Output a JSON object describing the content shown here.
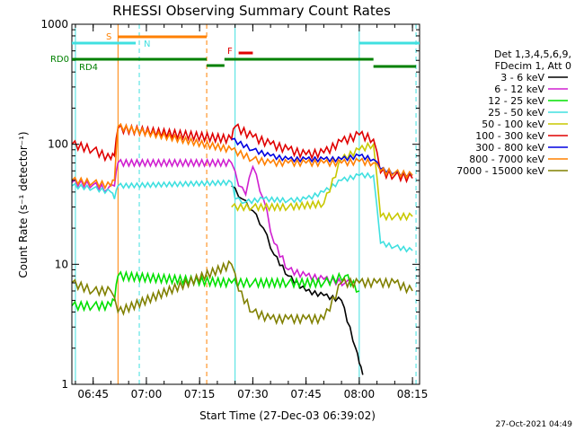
{
  "chart_data": {
    "type": "line",
    "title": "RHESSI Observing Summary Count Rates",
    "xlabel": "Start Time (27-Dec-03 06:39:02)",
    "ylabel": "Count Rate (s⁻¹ detector⁻¹)",
    "y_scale": "log",
    "ylim": [
      1,
      1000
    ],
    "xlim": [
      "06:39",
      "08:17"
    ],
    "x_ticks": [
      "06:45",
      "07:00",
      "07:15",
      "07:30",
      "07:45",
      "08:00",
      "08:15"
    ],
    "y_ticks": [
      "1",
      "10",
      "100",
      "1000"
    ],
    "legend_header": [
      "Det 1,3,4,5,6,9,",
      "FDecim 1, Att 0"
    ],
    "series": [
      {
        "name": "3 - 6 keV",
        "color": "#000000",
        "x": [
          "06:39",
          "06:45",
          "06:52",
          "07:24",
          "07:27",
          "07:30",
          "07:33",
          "07:36",
          "07:40",
          "07:45",
          "07:50",
          "07:55",
          "07:59",
          "08:00",
          "08:01"
        ],
        "y": [
          null,
          null,
          null,
          45,
          35,
          28,
          20,
          12,
          8,
          6,
          5.5,
          5,
          2,
          1.5,
          1.2
        ]
      },
      {
        "name": "6 - 12 keV",
        "color": "#d020d0",
        "x": [
          "06:39",
          "06:45",
          "06:49",
          "06:51",
          "06:52",
          "07:24",
          "07:26",
          "07:28",
          "07:30",
          "07:33",
          "07:36",
          "07:40",
          "07:45",
          "07:50",
          "07:56",
          "07:58"
        ],
        "y": [
          48,
          46,
          42,
          45,
          70,
          70,
          45,
          38,
          65,
          35,
          15,
          9,
          8,
          7.5,
          7,
          7
        ]
      },
      {
        "name": "12 - 25 keV",
        "color": "#00e000",
        "x": [
          "06:39",
          "06:45",
          "06:50",
          "06:51",
          "06:52",
          "07:24",
          "07:30",
          "07:40",
          "07:50",
          "07:56",
          "08:00",
          "08:04",
          "08:10",
          "08:15"
        ],
        "y": [
          4.5,
          4.5,
          4.5,
          5,
          8,
          7,
          7,
          7,
          7,
          8,
          6,
          null,
          null,
          null
        ]
      },
      {
        "name": "25 - 50 keV",
        "color": "#40e0e0",
        "x": [
          "06:39",
          "06:45",
          "06:50",
          "06:51",
          "06:52",
          "07:24",
          "07:25",
          "07:28",
          "07:33",
          "07:40",
          "07:45",
          "07:50",
          "07:55",
          "08:00",
          "08:04",
          "08:06",
          "08:10",
          "08:15"
        ],
        "y": [
          45,
          43,
          40,
          35,
          45,
          48,
          35,
          33,
          35,
          34,
          35,
          40,
          50,
          55,
          55,
          15,
          14,
          13
        ]
      },
      {
        "name": "50 - 100 keV",
        "color": "#c8c800",
        "x": [
          "06:39",
          "06:45",
          "06:50",
          "06:52",
          "07:24",
          "07:30",
          "07:40",
          "07:50",
          "07:55",
          "08:00",
          "08:04",
          "08:06",
          "08:10",
          "08:15"
        ],
        "y": [
          null,
          null,
          null,
          null,
          30,
          30,
          30,
          32,
          75,
          90,
          100,
          25,
          25,
          25
        ]
      },
      {
        "name": "100 - 300 keV",
        "color": "#e00000",
        "x": [
          "06:39",
          "06:45",
          "06:50",
          "06:51",
          "06:52",
          "07:24",
          "07:25",
          "07:30",
          "07:35",
          "07:40",
          "07:45",
          "07:50",
          "07:55",
          "08:00",
          "08:04",
          "08:06",
          "08:10",
          "08:15"
        ],
        "y": [
          100,
          90,
          75,
          80,
          135,
          110,
          140,
          115,
          100,
          90,
          82,
          85,
          105,
          120,
          110,
          58,
          55,
          52
        ]
      },
      {
        "name": "300 - 800 keV",
        "color": "#0000e0",
        "x": [
          "06:39",
          "06:45",
          "06:50",
          "06:52",
          "07:24",
          "07:30",
          "07:35",
          "07:40",
          "07:45",
          "07:50",
          "07:55",
          "08:00",
          "08:04",
          "08:06",
          "08:10",
          "08:15"
        ],
        "y": [
          null,
          null,
          null,
          null,
          110,
          90,
          80,
          75,
          75,
          75,
          75,
          80,
          75,
          62,
          58,
          55
        ]
      },
      {
        "name": "800 - 7000 keV",
        "color": "#ff8000",
        "x": [
          "06:39",
          "06:45",
          "06:50",
          "06:51",
          "06:52",
          "07:24",
          "07:30",
          "07:35",
          "07:40",
          "07:45",
          "07:50",
          "07:55",
          "08:00",
          "08:04",
          "08:06",
          "08:10",
          "08:15"
        ],
        "y": [
          50,
          48,
          45,
          50,
          140,
          90,
          75,
          70,
          70,
          70,
          70,
          70,
          72,
          70,
          60,
          58,
          55
        ]
      },
      {
        "name": "7000 - 15000 keV",
        "color": "#808000",
        "x": [
          "06:39",
          "06:45",
          "06:50",
          "06:52",
          "07:24",
          "07:26",
          "07:30",
          "07:35",
          "07:40",
          "07:45",
          "07:50",
          "07:55",
          "08:00",
          "08:05",
          "08:10",
          "08:15"
        ],
        "y": [
          7,
          6,
          6,
          4,
          10,
          6,
          4,
          3.5,
          3.5,
          3.5,
          3.5,
          7,
          7,
          7,
          7,
          6
        ]
      }
    ],
    "state_bars": [
      {
        "label": "S",
        "color": "#ff8000",
        "start": "06:52",
        "end": "07:17"
      },
      {
        "label": "N",
        "color": "#40e0e0",
        "start": "06:39",
        "end": "06:57"
      },
      {
        "label": "N",
        "color": "#40e0e0",
        "start": "08:00",
        "end": "08:17"
      },
      {
        "label": "F",
        "color": "#e00000",
        "start": "07:26",
        "end": "07:30"
      },
      {
        "label": "RD0",
        "color": "#008000",
        "start": "06:39",
        "end": "07:17"
      },
      {
        "label": "RD0",
        "color": "#008000",
        "start": "07:17",
        "end": "07:22"
      },
      {
        "label": "RD0",
        "color": "#008000",
        "start": "07:22",
        "end": "08:04"
      },
      {
        "label": "RD4",
        "color": "#008000",
        "start": "08:04",
        "end": "08:16"
      }
    ],
    "vertical_markers": [
      {
        "x": "06:40",
        "color": "#40e0e0",
        "style": "solid"
      },
      {
        "x": "06:52",
        "color": "#ff8000",
        "style": "solid"
      },
      {
        "x": "06:58",
        "color": "#40e0e0",
        "style": "dashed"
      },
      {
        "x": "07:17",
        "color": "#ff8000",
        "style": "dashed"
      },
      {
        "x": "07:25",
        "color": "#40e0e0",
        "style": "solid"
      },
      {
        "x": "08:00",
        "color": "#40e0e0",
        "style": "solid"
      },
      {
        "x": "08:16",
        "color": "#40e0e0",
        "style": "dashed"
      }
    ],
    "state_labels": {
      "s": "S",
      "n": "N",
      "f": "F",
      "rd0": "RD0",
      "rd4": "RD4"
    },
    "grid": false,
    "legend_position": "right"
  },
  "timestamp": "27-Oct-2021 04:49"
}
